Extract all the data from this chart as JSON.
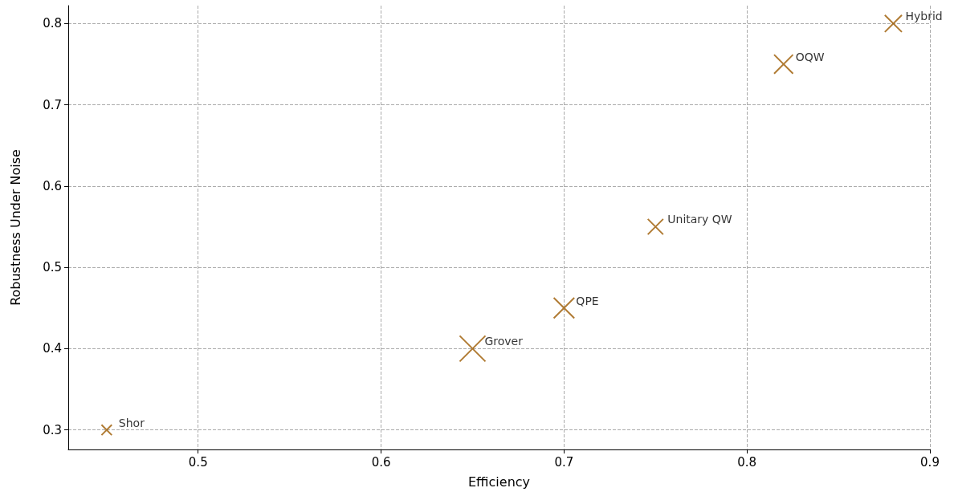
{
  "chart_data": {
    "type": "bubble",
    "xlabel": "Efficiency",
    "ylabel": "Robustness Under Noise",
    "x": [
      0.45,
      0.65,
      0.7,
      0.75,
      0.82,
      0.88
    ],
    "series": [
      {
        "color": "#9c5a00",
        "values": [
          0.3,
          0.4,
          0.45,
          0.55,
          0.75,
          0.8
        ],
        "sizes": [
          0.16,
          1,
          0.64,
          0.36,
          0.54,
          0.44
        ]
      }
    ],
    "annotations": [
      {
        "text": "Shor",
        "x": 0.45,
        "y": 0.3
      },
      {
        "text": "Grover",
        "x": 0.65,
        "y": 0.4
      },
      {
        "text": "QPE",
        "x": 0.7,
        "y": 0.45
      },
      {
        "text": "Unitary QW",
        "x": 0.75,
        "y": 0.55
      },
      {
        "text": "OQW",
        "x": 0.82,
        "y": 0.75
      },
      {
        "text": "Hybrid",
        "x": 0.88,
        "y": 0.8
      }
    ],
    "xlim": [
      0.429,
      0.9
    ],
    "xticks": [
      0.5,
      0.6,
      0.7,
      0.8,
      0.9
    ],
    "ylim": [
      0.276,
      0.822
    ],
    "yticks": [
      0.3,
      0.4,
      0.5,
      0.6,
      0.7,
      0.8
    ],
    "grid": true,
    "marker": "cross"
  }
}
